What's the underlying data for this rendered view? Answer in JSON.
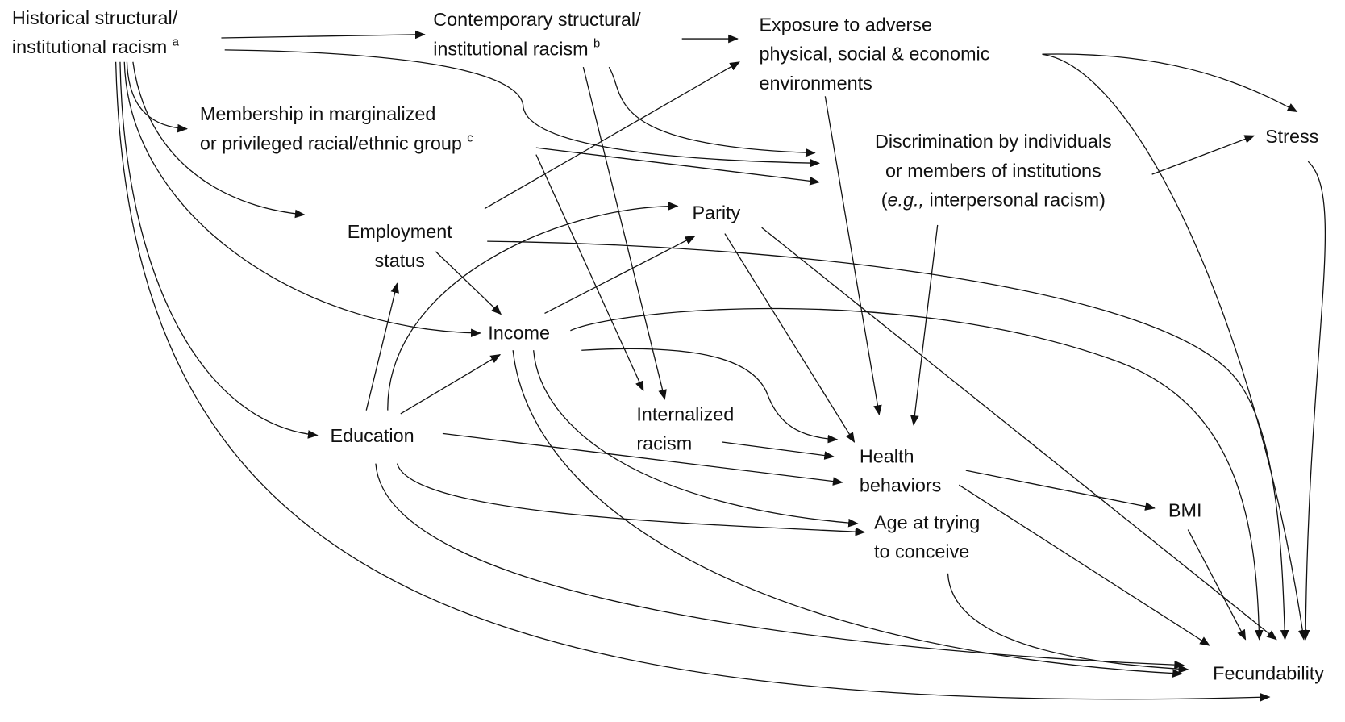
{
  "nodes": [
    {
      "id": "historical",
      "lines": [
        "Historical structural/",
        "institutional racism"
      ],
      "superscript": "a"
    },
    {
      "id": "contemporary",
      "lines": [
        "Contemporary structural/",
        "institutional racism"
      ],
      "superscript": "b"
    },
    {
      "id": "exposure",
      "lines": [
        "Exposure to adverse",
        "physical, social & economic",
        "environments"
      ]
    },
    {
      "id": "membership",
      "lines": [
        "Membership in marginalized",
        "or privileged racial/ethnic group"
      ],
      "superscript": "c"
    },
    {
      "id": "discrimination",
      "lines": [
        "Discrimination by individuals",
        "or members of institutions"
      ],
      "example": [
        "(",
        "e.g.,",
        " interpersonal racism)"
      ]
    },
    {
      "id": "stress",
      "lines": [
        "Stress"
      ]
    },
    {
      "id": "employment",
      "lines": [
        "Employment",
        "status"
      ]
    },
    {
      "id": "parity",
      "lines": [
        "Parity"
      ]
    },
    {
      "id": "income",
      "lines": [
        "Income"
      ]
    },
    {
      "id": "internalized",
      "lines": [
        "Internalized",
        "racism"
      ]
    },
    {
      "id": "education",
      "lines": [
        "Education"
      ]
    },
    {
      "id": "health",
      "lines": [
        "Health",
        "behaviors"
      ]
    },
    {
      "id": "bmi",
      "lines": [
        "BMI"
      ]
    },
    {
      "id": "age",
      "lines": [
        "Age at trying",
        "to conceive"
      ]
    },
    {
      "id": "fecundability",
      "lines": [
        "Fecundability"
      ]
    }
  ]
}
